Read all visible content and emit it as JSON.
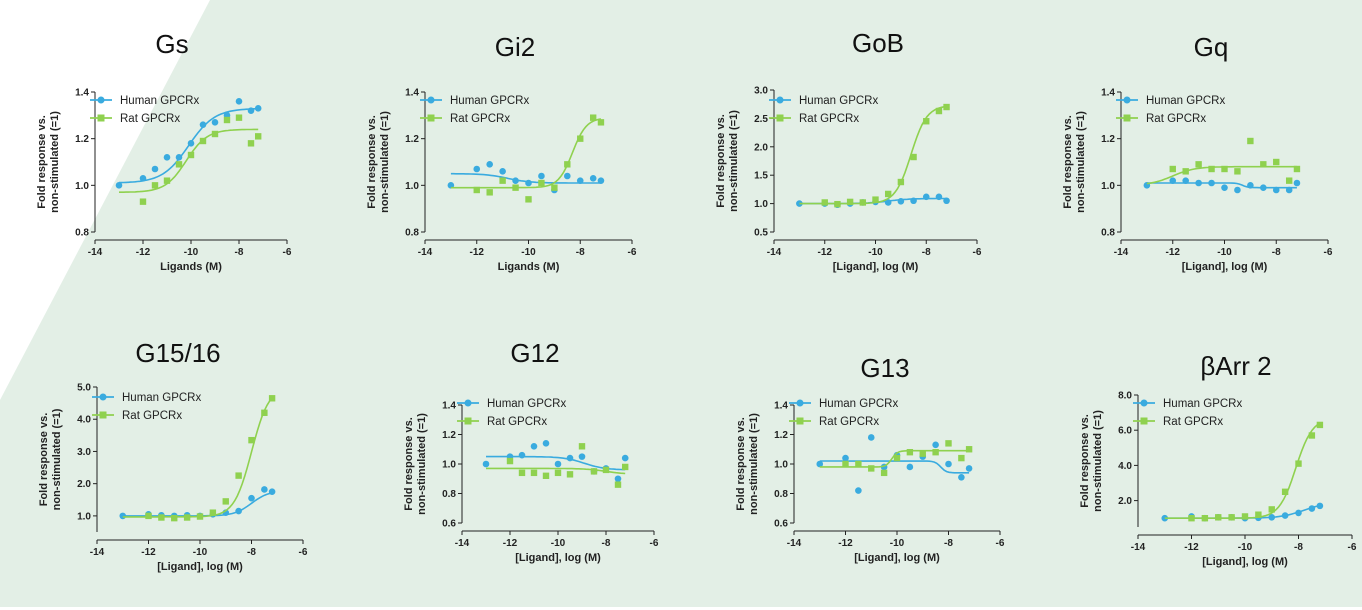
{
  "colors": {
    "human": "#3aabdf",
    "rat": "#8fd14f",
    "background": "#e3efe6"
  },
  "legend": [
    "Human GPCRx",
    "Rat GPCRx"
  ],
  "chart_data": [
    {
      "type": "scatter",
      "title": "Gs",
      "xlabel": "Ligands (M)",
      "ylabel": "Fold response vs.\nnon-stimulated (=1)",
      "xlim": [
        -14,
        -6
      ],
      "ylim": [
        0.8,
        1.4
      ],
      "xticks": [
        -14,
        -12,
        -10,
        -8,
        -6
      ],
      "yticks": [
        0.8,
        1.0,
        1.2,
        1.4
      ],
      "yfmt": 1,
      "series": [
        {
          "name": "Human GPCRx",
          "points": [
            [
              -13,
              1.0
            ],
            [
              -12,
              1.03
            ],
            [
              -11.5,
              1.07
            ],
            [
              -11,
              1.12
            ],
            [
              -10.5,
              1.12
            ],
            [
              -10,
              1.18
            ],
            [
              -9.5,
              1.26
            ],
            [
              -9,
              1.27
            ],
            [
              -8.5,
              1.3
            ],
            [
              -8,
              1.36
            ],
            [
              -7.5,
              1.32
            ],
            [
              -7.2,
              1.33
            ]
          ],
          "curve": {
            "bottom": 1.01,
            "top": 1.33,
            "ec50": -10.1,
            "hill": 0.8
          }
        },
        {
          "name": "Rat GPCRx",
          "points": [
            [
              -12,
              0.93
            ],
            [
              -11.5,
              1.0
            ],
            [
              -11,
              1.02
            ],
            [
              -10.5,
              1.09
            ],
            [
              -10,
              1.13
            ],
            [
              -9.5,
              1.19
            ],
            [
              -9,
              1.22
            ],
            [
              -8.5,
              1.28
            ],
            [
              -8,
              1.29
            ],
            [
              -7.5,
              1.18
            ],
            [
              -7.2,
              1.21
            ]
          ],
          "curve": {
            "bottom": 0.97,
            "top": 1.24,
            "ec50": -10.2,
            "hill": 1.0
          }
        }
      ]
    },
    {
      "type": "scatter",
      "title": "Gi2",
      "xlabel": "Ligands (M)",
      "ylabel": "Fold response vs.\nnon-stimulated (=1)",
      "xlim": [
        -14,
        -6
      ],
      "ylim": [
        0.8,
        1.4
      ],
      "xticks": [
        -14,
        -12,
        -10,
        -8,
        -6
      ],
      "yticks": [
        0.8,
        1.0,
        1.2,
        1.4
      ],
      "yfmt": 1,
      "series": [
        {
          "name": "Human GPCRx",
          "points": [
            [
              -13,
              1.0
            ],
            [
              -12,
              1.07
            ],
            [
              -11.5,
              1.09
            ],
            [
              -11,
              1.06
            ],
            [
              -10.5,
              1.02
            ],
            [
              -10,
              1.01
            ],
            [
              -9.5,
              1.04
            ],
            [
              -9,
              0.98
            ],
            [
              -8.5,
              1.04
            ],
            [
              -8,
              1.02
            ],
            [
              -7.5,
              1.03
            ],
            [
              -7.2,
              1.02
            ]
          ],
          "curve": {
            "bottom": 1.05,
            "top": 1.01,
            "ec50": -10.8,
            "hill": 1.0
          }
        },
        {
          "name": "Rat GPCRx",
          "points": [
            [
              -12,
              0.98
            ],
            [
              -11.5,
              0.97
            ],
            [
              -11,
              1.02
            ],
            [
              -10.5,
              0.99
            ],
            [
              -10,
              0.94
            ],
            [
              -9.5,
              1.01
            ],
            [
              -9,
              0.99
            ],
            [
              -8.5,
              1.09
            ],
            [
              -8,
              1.2
            ],
            [
              -7.5,
              1.29
            ],
            [
              -7.2,
              1.27
            ]
          ],
          "curve": {
            "bottom": 0.99,
            "top": 1.29,
            "ec50": -8.3,
            "hill": 1.6
          }
        }
      ]
    },
    {
      "type": "scatter",
      "title": "GoB",
      "xlabel": "[Ligand], log (M)",
      "ylabel": "Fold response vs.\nnon-stimulated (=1)",
      "xlim": [
        -14,
        -6
      ],
      "ylim": [
        0.5,
        3.0
      ],
      "xticks": [
        -14,
        -12,
        -10,
        -8,
        -6
      ],
      "yticks": [
        0.5,
        1.0,
        1.5,
        2.0,
        2.5,
        3.0
      ],
      "yfmt": 1,
      "series": [
        {
          "name": "Human GPCRx",
          "points": [
            [
              -13,
              1.0
            ],
            [
              -12,
              1.0
            ],
            [
              -11.5,
              0.98
            ],
            [
              -11,
              1.0
            ],
            [
              -10.5,
              1.02
            ],
            [
              -10,
              1.03
            ],
            [
              -9.5,
              1.02
            ],
            [
              -9,
              1.04
            ],
            [
              -8.5,
              1.05
            ],
            [
              -8,
              1.12
            ],
            [
              -7.5,
              1.12
            ],
            [
              -7.2,
              1.05
            ]
          ],
          "curve": {
            "bottom": 1.0,
            "top": 1.09,
            "ec50": -9.5,
            "hill": 1.0
          }
        },
        {
          "name": "Rat GPCRx",
          "points": [
            [
              -12,
              1.02
            ],
            [
              -11.5,
              0.99
            ],
            [
              -11,
              1.03
            ],
            [
              -10.5,
              1.02
            ],
            [
              -10,
              1.07
            ],
            [
              -9.5,
              1.17
            ],
            [
              -9,
              1.38
            ],
            [
              -8.5,
              1.82
            ],
            [
              -8,
              2.45
            ],
            [
              -7.5,
              2.63
            ],
            [
              -7.2,
              2.7
            ]
          ],
          "curve": {
            "bottom": 1.0,
            "top": 2.73,
            "ec50": -8.6,
            "hill": 1.4
          }
        }
      ]
    },
    {
      "type": "scatter",
      "title": "Gq",
      "xlabel": "[Ligand], log (M)",
      "ylabel": "Fold response vs.\nnon-stimulated (=1)",
      "xlim": [
        -14,
        -6
      ],
      "ylim": [
        0.8,
        1.4
      ],
      "xticks": [
        -14,
        -12,
        -10,
        -8,
        -6
      ],
      "yticks": [
        0.8,
        1.0,
        1.2,
        1.4
      ],
      "yfmt": 1,
      "series": [
        {
          "name": "Human GPCRx",
          "points": [
            [
              -13,
              1.0
            ],
            [
              -12,
              1.02
            ],
            [
              -11.5,
              1.02
            ],
            [
              -11,
              1.01
            ],
            [
              -10.5,
              1.01
            ],
            [
              -10,
              0.99
            ],
            [
              -9.5,
              0.98
            ],
            [
              -9,
              1.0
            ],
            [
              -8.5,
              0.99
            ],
            [
              -8,
              0.98
            ],
            [
              -7.5,
              0.98
            ],
            [
              -7.2,
              1.01
            ]
          ],
          "curve": {
            "bottom": 1.01,
            "top": 0.99,
            "ec50": -9.3,
            "hill": 4.0
          }
        },
        {
          "name": "Rat GPCRx",
          "points": [
            [
              -12,
              1.07
            ],
            [
              -11.5,
              1.06
            ],
            [
              -11,
              1.09
            ],
            [
              -10.5,
              1.07
            ],
            [
              -10,
              1.07
            ],
            [
              -9.5,
              1.06
            ],
            [
              -9,
              1.19
            ],
            [
              -8.5,
              1.09
            ],
            [
              -8,
              1.1
            ],
            [
              -7.5,
              1.02
            ],
            [
              -7.2,
              1.07
            ]
          ],
          "curve": {
            "bottom": 1.0,
            "top": 1.08,
            "ec50": -12.0,
            "hill": 1.0
          }
        }
      ]
    },
    {
      "type": "scatter",
      "title": "G15/16",
      "xlabel": "[Ligand], log (M)",
      "ylabel": "Fold response vs.\nnon-stimulated (=1)",
      "xlim": [
        -14,
        -6
      ],
      "ylim": [
        0.5,
        5.0
      ],
      "xticks": [
        -14,
        -12,
        -10,
        -8,
        -6
      ],
      "yticks": [
        1.0,
        2.0,
        3.0,
        4.0,
        5.0
      ],
      "yfmt": 1,
      "series": [
        {
          "name": "Human GPCRx",
          "points": [
            [
              -13,
              1.0
            ],
            [
              -12,
              1.05
            ],
            [
              -11.5,
              1.02
            ],
            [
              -11,
              1.0
            ],
            [
              -10.5,
              1.02
            ],
            [
              -10,
              1.0
            ],
            [
              -9.5,
              1.05
            ],
            [
              -9,
              1.1
            ],
            [
              -8.5,
              1.15
            ],
            [
              -8,
              1.55
            ],
            [
              -7.5,
              1.82
            ],
            [
              -7.2,
              1.75
            ]
          ],
          "curve": {
            "bottom": 1.0,
            "top": 1.78,
            "ec50": -8.0,
            "hill": 1.3
          }
        },
        {
          "name": "Rat GPCRx",
          "points": [
            [
              -12,
              1.0
            ],
            [
              -11.5,
              0.95
            ],
            [
              -11,
              0.93
            ],
            [
              -10.5,
              0.95
            ],
            [
              -10,
              0.98
            ],
            [
              -9.5,
              1.1
            ],
            [
              -9,
              1.45
            ],
            [
              -8.5,
              2.25
            ],
            [
              -8,
              3.35
            ],
            [
              -7.5,
              4.2
            ],
            [
              -7.2,
              4.65
            ]
          ],
          "curve": {
            "bottom": 0.97,
            "top": 5.0,
            "ec50": -8.0,
            "hill": 1.3
          }
        }
      ]
    },
    {
      "type": "scatter",
      "title": "G12",
      "xlabel": "[Ligand], log (M)",
      "ylabel": "Fold response vs.\nnon-stimulated (=1)",
      "xlim": [
        -14,
        -6
      ],
      "ylim": [
        0.6,
        1.4
      ],
      "xticks": [
        -14,
        -12,
        -10,
        -8,
        -6
      ],
      "yticks": [
        0.6,
        0.8,
        1.0,
        1.2,
        1.4
      ],
      "yfmt": 1,
      "series": [
        {
          "name": "Human GPCRx",
          "points": [
            [
              -13,
              1.0
            ],
            [
              -12,
              1.05
            ],
            [
              -11.5,
              1.06
            ],
            [
              -11,
              1.12
            ],
            [
              -10.5,
              1.14
            ],
            [
              -10,
              1.0
            ],
            [
              -9.5,
              1.04
            ],
            [
              -9,
              1.05
            ],
            [
              -8.5,
              0.95
            ],
            [
              -8,
              0.97
            ],
            [
              -7.5,
              0.9
            ],
            [
              -7.2,
              1.04
            ]
          ],
          "curve": {
            "bottom": 1.05,
            "top": 0.96,
            "ec50": -8.9,
            "hill": 1.0
          }
        },
        {
          "name": "Rat GPCRx",
          "points": [
            [
              -12,
              1.02
            ],
            [
              -11.5,
              0.94
            ],
            [
              -11,
              0.94
            ],
            [
              -10.5,
              0.92
            ],
            [
              -10,
              0.94
            ],
            [
              -9.5,
              0.93
            ],
            [
              -9,
              1.12
            ],
            [
              -8.5,
              0.95
            ],
            [
              -8,
              0.96
            ],
            [
              -7.5,
              0.86
            ],
            [
              -7.2,
              0.98
            ]
          ],
          "curve": {
            "bottom": 0.97,
            "top": 0.93,
            "ec50": -8.0,
            "hill": 1.0
          }
        }
      ]
    },
    {
      "type": "scatter",
      "title": "G13",
      "xlabel": "[Ligand], log (M)",
      "ylabel": "Fold response vs.\nnon-stimulated (=1)",
      "xlim": [
        -14,
        -6
      ],
      "ylim": [
        0.6,
        1.4
      ],
      "xticks": [
        -14,
        -12,
        -10,
        -8,
        -6
      ],
      "yticks": [
        0.6,
        0.8,
        1.0,
        1.2,
        1.4
      ],
      "yfmt": 1,
      "series": [
        {
          "name": "Human GPCRx",
          "points": [
            [
              -13,
              1.0
            ],
            [
              -12,
              1.04
            ],
            [
              -11.5,
              0.82
            ],
            [
              -11,
              1.18
            ],
            [
              -10.5,
              0.98
            ],
            [
              -10,
              1.06
            ],
            [
              -9.5,
              0.98
            ],
            [
              -9,
              1.05
            ],
            [
              -8.5,
              1.13
            ],
            [
              -8,
              1.0
            ],
            [
              -7.5,
              0.91
            ],
            [
              -7.2,
              0.97
            ]
          ],
          "curve": {
            "bottom": 1.02,
            "top": 0.94,
            "ec50": -8.3,
            "hill": 4.0
          }
        },
        {
          "name": "Rat GPCRx",
          "points": [
            [
              -12,
              1.0
            ],
            [
              -11.5,
              1.0
            ],
            [
              -11,
              0.97
            ],
            [
              -10.5,
              0.94
            ],
            [
              -10,
              1.04
            ],
            [
              -9.5,
              1.08
            ],
            [
              -9,
              1.07
            ],
            [
              -8.5,
              1.08
            ],
            [
              -8,
              1.14
            ],
            [
              -7.5,
              1.04
            ],
            [
              -7.2,
              1.1
            ]
          ],
          "curve": {
            "bottom": 0.98,
            "top": 1.09,
            "ec50": -10.2,
            "hill": 4.0
          }
        }
      ]
    },
    {
      "type": "scatter",
      "title": "βArr 2",
      "xlabel": "[Ligand], log (M)",
      "ylabel": "Fold response vs.\nnon-stimulated (=1)",
      "xlim": [
        -14,
        -6
      ],
      "ylim": [
        0.5,
        8.0
      ],
      "xticks": [
        -14,
        -12,
        -10,
        -8,
        -6
      ],
      "yticks": [
        2.0,
        4.0,
        6.0,
        8.0
      ],
      "yfmt": 1,
      "series": [
        {
          "name": "Human GPCRx",
          "points": [
            [
              -13,
              1.0
            ],
            [
              -12,
              1.1
            ],
            [
              -11.5,
              1.0
            ],
            [
              -11,
              1.05
            ],
            [
              -10.5,
              1.05
            ],
            [
              -10,
              1.0
            ],
            [
              -9.5,
              1.02
            ],
            [
              -9,
              1.05
            ],
            [
              -8.5,
              1.15
            ],
            [
              -8,
              1.3
            ],
            [
              -7.5,
              1.55
            ],
            [
              -7.2,
              1.7
            ]
          ],
          "curve": {
            "bottom": 1.0,
            "top": 1.9,
            "ec50": -7.8,
            "hill": 1.0
          }
        },
        {
          "name": "Rat GPCRx",
          "points": [
            [
              -12,
              1.0
            ],
            [
              -11.5,
              1.0
            ],
            [
              -11,
              1.05
            ],
            [
              -10.5,
              1.05
            ],
            [
              -10,
              1.1
            ],
            [
              -9.5,
              1.2
            ],
            [
              -9,
              1.5
            ],
            [
              -8.5,
              2.5
            ],
            [
              -8,
              4.1
            ],
            [
              -7.5,
              5.7
            ],
            [
              -7.2,
              6.3
            ]
          ],
          "curve": {
            "bottom": 1.0,
            "top": 6.7,
            "ec50": -8.1,
            "hill": 1.4
          }
        }
      ]
    }
  ]
}
